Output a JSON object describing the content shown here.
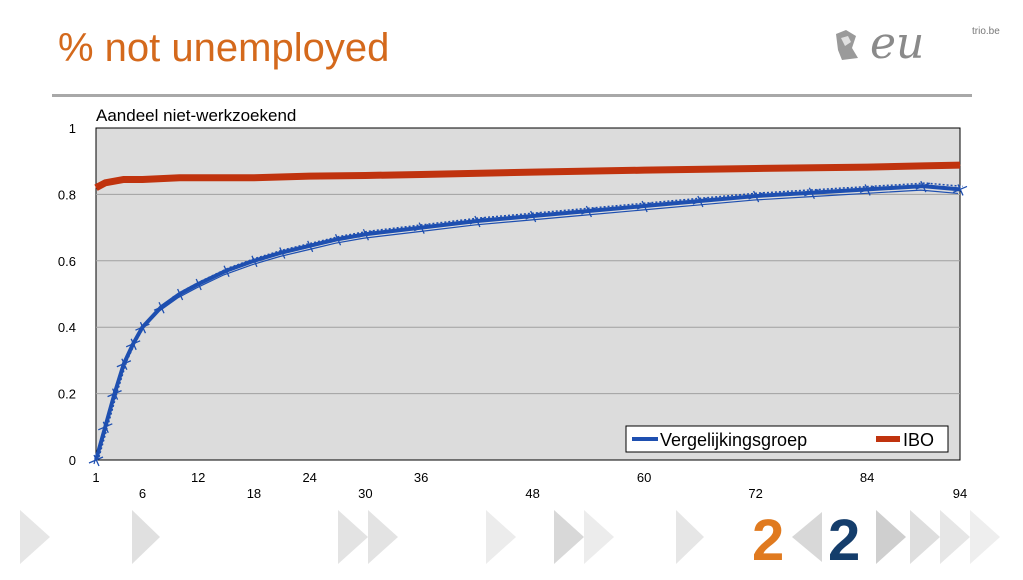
{
  "slide": {
    "title": "% not unemployed",
    "logo": {
      "script": "eu",
      "site": "trio.be"
    },
    "footer_numbers": [
      "2",
      "2"
    ]
  },
  "colors": {
    "title": "#d4691c",
    "series_blue": "#1e4fb0",
    "series_red": "#c0330e",
    "plot_bg": "#dcdcdc"
  },
  "chart_data": {
    "type": "line",
    "title": "Aandeel niet-werkzoekend",
    "xlabel": "",
    "ylabel": "",
    "ylim": [
      0,
      1
    ],
    "xlim": [
      1,
      94
    ],
    "grid": true,
    "legend_position": "bottom-right",
    "yticks": [
      "0",
      "0.2",
      "0.4",
      "0.6",
      "0.8",
      "1"
    ],
    "xticks_upper": [
      "1",
      "12",
      "24",
      "36",
      "60",
      "84"
    ],
    "xticks_lower": [
      "6",
      "18",
      "30",
      "48",
      "72",
      "94"
    ],
    "series": [
      {
        "name": "Vergelijkingsgroep",
        "color": "#1e4fb0",
        "x": [
          1,
          2,
          3,
          4,
          5,
          6,
          8,
          10,
          12,
          15,
          18,
          21,
          24,
          27,
          30,
          36,
          42,
          48,
          54,
          60,
          66,
          72,
          78,
          84,
          90,
          94
        ],
        "y": [
          0.0,
          0.1,
          0.2,
          0.29,
          0.35,
          0.4,
          0.46,
          0.5,
          0.53,
          0.57,
          0.6,
          0.625,
          0.645,
          0.665,
          0.68,
          0.7,
          0.72,
          0.735,
          0.75,
          0.765,
          0.78,
          0.795,
          0.805,
          0.815,
          0.825,
          0.815
        ]
      },
      {
        "name": "IBO",
        "color": "#c0330e",
        "x": [
          1,
          2,
          4,
          6,
          10,
          14,
          18,
          24,
          30,
          36,
          48,
          60,
          72,
          84,
          90,
          94
        ],
        "y": [
          0.82,
          0.835,
          0.845,
          0.845,
          0.85,
          0.85,
          0.85,
          0.855,
          0.857,
          0.86,
          0.867,
          0.873,
          0.878,
          0.882,
          0.886,
          0.888
        ]
      }
    ]
  }
}
